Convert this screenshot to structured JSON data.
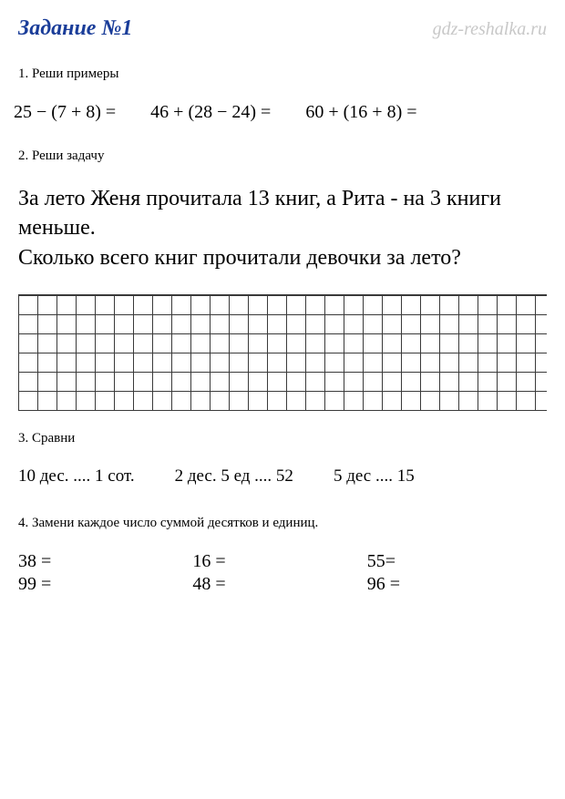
{
  "header": {
    "title": "Задание №1",
    "watermark": "gdz-reshalka.ru"
  },
  "section1": {
    "label": "1. Реши примеры",
    "expressions": [
      "25 − (7 + 8) =",
      "46 + (28 − 24) =",
      "60 + (16 + 8) ="
    ]
  },
  "section2": {
    "label": "2. Реши задачу",
    "text_line1": "За лето Женя прочитала 13 книг, а Рита - на 3 книги меньше.",
    "text_line2": "Сколько всего книг прочитали девочки за лето?"
  },
  "section3": {
    "label": "3. Сравни",
    "comparisons": [
      "10 дес. .... 1 сот.",
      "2 дес. 5 ед .... 52",
      "5 дес .... 15"
    ]
  },
  "section4": {
    "label": "4. Замени каждое число суммой десятков и единиц.",
    "col1": [
      "38 =",
      "99 ="
    ],
    "col2": [
      "16 =",
      "48 ="
    ],
    "col3": [
      "55=",
      "96 ="
    ]
  },
  "colors": {
    "title": "#1a3d99",
    "watermark": "#c8c8c8",
    "text": "#000000",
    "grid": "#3a3a3a",
    "background": "#ffffff"
  }
}
